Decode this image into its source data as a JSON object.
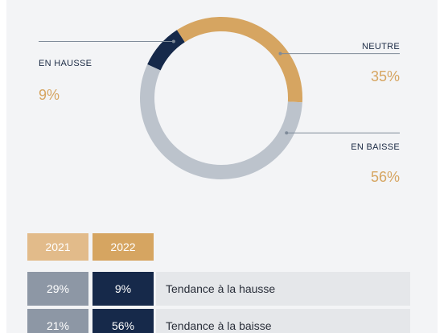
{
  "chart_data": {
    "type": "pie",
    "variant": "donut",
    "slices": [
      {
        "label": "EN HAUSSE",
        "value": 9,
        "display": "9%",
        "color": "#16294a"
      },
      {
        "label": "NEUTRE",
        "value": 35,
        "display": "35%",
        "color": "#d6a561"
      },
      {
        "label": "EN BAISSE",
        "value": 56,
        "display": "56%",
        "color": "#bcc3cc"
      }
    ]
  },
  "table": {
    "headers": [
      {
        "label": "2021",
        "color": "#e2bb8a"
      },
      {
        "label": "2022",
        "color": "#d6a561"
      }
    ],
    "rows": [
      {
        "v2021": "29%",
        "v2022": "9%",
        "label": "Tendance à la hausse"
      },
      {
        "v2021": "21%",
        "v2022": "56%",
        "label": "Tendance à la baisse"
      }
    ],
    "colors": {
      "col2021": "#8d97a5",
      "col2022": "#16294a"
    }
  }
}
